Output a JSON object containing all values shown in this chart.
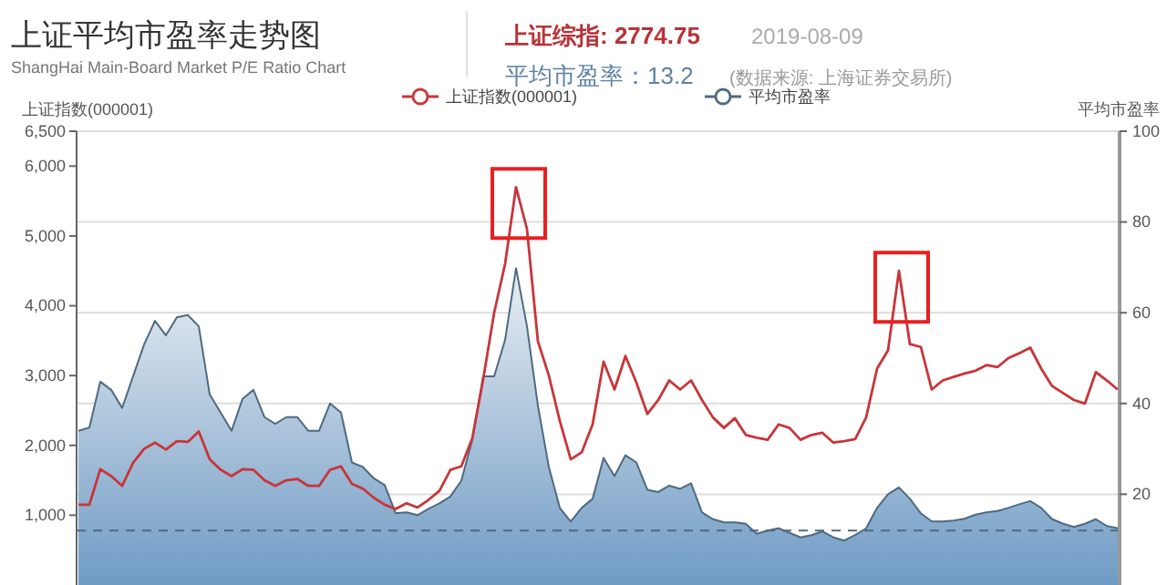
{
  "chart_data": {
    "type": "line",
    "title": "上证平均市盈率走势图",
    "subtitle": "ShangHai Main-Board Market P/E Ratio Chart",
    "ylabel": "上证指数(000001)",
    "y2label": "平均市盈率",
    "annotations": [
      "上证综指: 2774.75",
      "2019-08-09",
      "平均市盈率：13.2",
      "(数据来源: 上海证券交易所)"
    ],
    "categories": [
      null,
      null,
      null,
      null,
      null,
      null,
      null,
      null,
      null,
      null,
      null,
      null,
      null,
      null,
      null,
      null,
      null,
      null,
      null,
      null,
      null,
      null,
      null,
      null,
      null,
      null,
      null,
      null,
      null,
      null,
      null,
      null,
      null,
      null,
      null,
      null,
      null,
      null,
      null,
      null,
      null,
      null,
      null,
      null,
      null,
      null,
      null,
      null,
      null,
      null,
      null,
      null,
      null,
      null,
      null,
      null,
      null,
      null,
      null,
      null,
      null,
      null,
      null,
      null,
      null,
      null,
      null,
      null,
      null,
      null,
      null,
      null,
      null,
      null,
      null,
      null,
      null,
      null,
      null,
      null,
      null,
      null,
      null,
      null,
      null,
      null,
      null,
      null,
      null,
      null,
      null,
      null,
      null,
      null,
      null,
      null
    ],
    "series": [
      {
        "name": "上证指数(000001)",
        "color": "#c8353a",
        "values": [
          1150,
          1150,
          1660,
          1560,
          1420,
          1750,
          1950,
          2040,
          1940,
          2060,
          2050,
          2200,
          1800,
          1650,
          1560,
          1660,
          1650,
          1500,
          1420,
          1500,
          1520,
          1420,
          1420,
          1650,
          1700,
          1450,
          1380,
          1250,
          1150,
          1090,
          1170,
          1110,
          1220,
          1350,
          1650,
          1700,
          2100,
          2950,
          3900,
          4600,
          5700,
          5100,
          3490,
          3000,
          2350,
          1800,
          1900,
          2300,
          3200,
          2800,
          3280,
          2900,
          2450,
          2650,
          2930,
          2800,
          2930,
          2650,
          2400,
          2250,
          2390,
          2150,
          2110,
          2080,
          2300,
          2250,
          2080,
          2150,
          2180,
          2040,
          2060,
          2090,
          2400,
          3100,
          3360,
          4500,
          3450,
          3410,
          2800,
          2930,
          2980,
          3030,
          3070,
          3150,
          3120,
          3250,
          3320,
          3400,
          3100,
          2850,
          2750,
          2650,
          2600,
          3050,
          2930,
          2800
        ]
      },
      {
        "name": "平均市盈率",
        "type": "area",
        "axis": "y2",
        "color": "#4f6a82",
        "values": [
          34,
          34.7,
          44.8,
          43,
          39,
          46,
          53,
          58.2,
          55,
          59,
          59.5,
          57,
          42,
          38,
          34,
          41,
          43,
          37,
          35.5,
          37,
          37,
          34,
          34,
          40,
          38,
          27,
          26,
          23.5,
          22,
          15.8,
          16,
          15.4,
          16.8,
          18,
          19.5,
          23,
          32,
          46,
          46,
          54,
          69.8,
          57,
          39.5,
          26,
          17,
          14,
          17,
          19,
          28,
          24,
          28.6,
          27,
          21,
          20.5,
          21.9,
          21.2,
          22.4,
          16,
          14.5,
          13.8,
          13.8,
          13.5,
          11.3,
          12,
          12.5,
          11.5,
          10.5,
          11,
          11.8,
          10.5,
          9.8,
          11,
          12.5,
          17,
          20,
          21.5,
          19,
          15.8,
          14,
          14,
          14.2,
          14.6,
          15.5,
          16,
          16.3,
          17,
          17.8,
          18.5,
          17,
          14.5,
          13.5,
          12.8,
          13.5,
          14.5,
          13,
          12.5
        ]
      }
    ],
    "ylim": [
      0,
      6500
    ],
    "yticks": [
      {
        "value": 1000,
        "label": "1,000"
      },
      {
        "value": 2000,
        "label": "2,000"
      },
      {
        "value": 3000,
        "label": "3,000"
      },
      {
        "value": 4000,
        "label": "4,000"
      },
      {
        "value": 5000,
        "label": "5,000"
      },
      {
        "value": 6000,
        "label": "6,000"
      },
      {
        "value": 6500,
        "label": "6,500"
      }
    ],
    "y2lim": [
      0,
      100
    ],
    "y2ticks": [
      20,
      40,
      60,
      80,
      100
    ],
    "ref_lines": [
      {
        "axis": "y2",
        "value": 12,
        "color": "#4f6a82",
        "line_style": "dashed"
      }
    ],
    "grid": true,
    "legend": "top",
    "tick_labels": "y"
  }
}
